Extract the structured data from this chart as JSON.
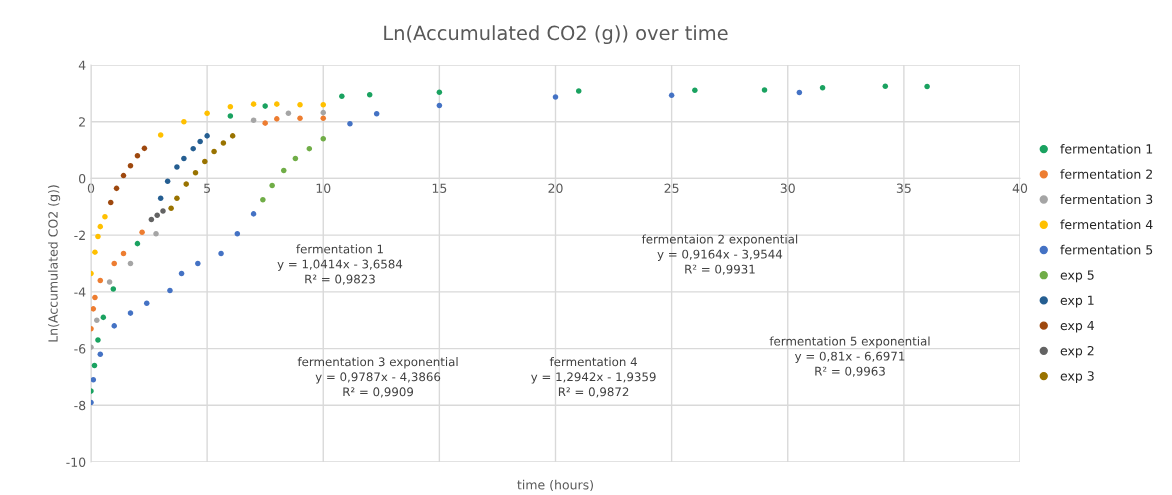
{
  "chart_data": {
    "type": "scatter",
    "title": "Ln(Accumulated CO2 (g)) over time",
    "xlabel": "time (hours)",
    "ylabel": "Ln(Accumulated CO2 (g))",
    "xlim": [
      0,
      40
    ],
    "xticks": [
      0,
      5,
      10,
      15,
      20,
      25,
      30,
      35,
      40
    ],
    "ylim": [
      -10,
      4
    ],
    "yticks": [
      -10,
      -8,
      -6,
      -4,
      -2,
      0,
      2,
      4
    ],
    "grid": true,
    "legend": "right",
    "marker": "circle",
    "series": [
      {
        "name": "fermentation 1",
        "color": "#1aa260",
        "x": [
          0,
          0.15,
          0.3,
          0.53,
          0.96,
          2.0,
          6.0,
          7.5,
          10.8,
          12,
          15,
          21,
          26,
          29,
          31.5,
          34.2,
          36
        ],
        "values": [
          -7.5,
          -6.6,
          -5.7,
          -4.9,
          -3.9,
          -2.3,
          2.2,
          2.55,
          2.9,
          2.95,
          3.04,
          3.08,
          3.11,
          3.12,
          3.2,
          3.25,
          3.24
        ]
      },
      {
        "name": "fermentation 2",
        "color": "#ed7d31",
        "x": [
          0,
          0.1,
          0.17,
          0.4,
          1.0,
          1.4,
          2.2,
          7.5,
          8.0,
          9.0,
          10
        ],
        "values": [
          -5.3,
          -4.6,
          -4.2,
          -3.6,
          -3.0,
          -2.65,
          -1.9,
          1.95,
          2.1,
          2.12,
          2.12
        ]
      },
      {
        "name": "fermentation 3",
        "color": "#a5a5a5",
        "x": [
          0,
          0.25,
          0.8,
          1.7,
          2.8,
          7.0,
          8.5,
          10
        ],
        "values": [
          -5.95,
          -5.0,
          -3.65,
          -3.0,
          -1.95,
          2.05,
          2.3,
          2.32
        ]
      },
      {
        "name": "fermentation 4",
        "color": "#ffc000",
        "x": [
          0,
          0.17,
          0.3,
          0.4,
          0.6,
          3.0,
          4.0,
          5.0,
          6.0,
          7.0,
          8.0,
          9.0,
          10
        ],
        "values": [
          -3.35,
          -2.6,
          -2.05,
          -1.7,
          -1.35,
          1.53,
          2.0,
          2.3,
          2.53,
          2.62,
          2.62,
          2.6,
          2.6
        ]
      },
      {
        "name": "fermentation 5",
        "color": "#4472c4",
        "x": [
          0,
          0.1,
          0.4,
          1.0,
          1.7,
          2.4,
          3.4,
          3.9,
          4.6,
          5.6,
          6.3,
          7.0,
          11.15,
          12.3,
          15,
          20,
          25,
          30.5
        ],
        "values": [
          -7.9,
          -7.1,
          -6.2,
          -5.2,
          -4.75,
          -4.4,
          -3.95,
          -3.35,
          -3.0,
          -2.65,
          -1.95,
          -1.25,
          1.93,
          2.28,
          2.57,
          2.87,
          2.93,
          3.03
        ]
      },
      {
        "name": "exp 5",
        "color": "#70ad47",
        "x": [
          7.4,
          7.8,
          8.3,
          8.8,
          9.4,
          10
        ],
        "values": [
          -0.75,
          -0.25,
          0.28,
          0.7,
          1.05,
          1.4
        ]
      },
      {
        "name": "exp 1",
        "color": "#255e91",
        "x": [
          3.0,
          3.3,
          3.7,
          4.0,
          4.4,
          4.7,
          5.0
        ],
        "values": [
          -0.7,
          -0.1,
          0.4,
          0.7,
          1.05,
          1.3,
          1.5
        ]
      },
      {
        "name": "exp 4",
        "color": "#9e480e",
        "x": [
          0.85,
          1.1,
          1.4,
          1.7,
          2.0,
          2.3
        ],
        "values": [
          -0.85,
          -0.35,
          0.1,
          0.45,
          0.8,
          1.06
        ]
      },
      {
        "name": "exp 2",
        "color": "#636363",
        "x": [
          2.6,
          2.85,
          3.1
        ],
        "values": [
          -1.45,
          -1.3,
          -1.15
        ]
      },
      {
        "name": "exp 3",
        "color": "#997300",
        "x": [
          3.45,
          3.7,
          4.1,
          4.5,
          4.9,
          5.3,
          5.7,
          6.1
        ],
        "values": [
          -1.05,
          -0.7,
          -0.2,
          0.2,
          0.6,
          0.95,
          1.25,
          1.5
        ]
      }
    ],
    "annotations": [
      "fermentation 1\ny = 1,0414x - 3,6584\nR² = 0,9823",
      "fermentaion 2 exponential\ny = 0,9164x - 3,9544\nR² = 0,9931",
      "fermentation 3 exponential\ny = 0,9787x - 4,3866\nR² = 0,9909",
      "fermentation 4\ny = 1,2942x - 1,9359\nR² = 0,9872",
      "fermentation 5 exponential\ny = 0,81x - 6,6971\nR² = 0,9963"
    ]
  }
}
